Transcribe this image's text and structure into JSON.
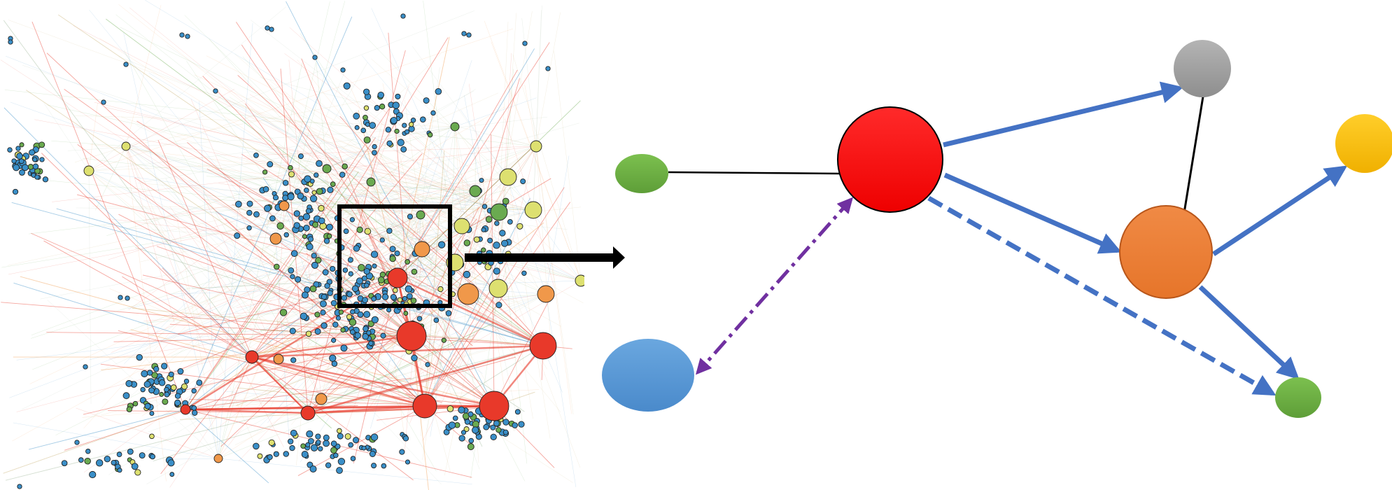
{
  "colors": {
    "hub_red": "#ff0000",
    "orange": "#ed7d31",
    "green": "#70ad47",
    "blue": "#5b9bd5",
    "gray": "#a5a5a5",
    "yellow": "#ffc000",
    "edge_blue": "#4472c4",
    "edge_purple": "#7030a0",
    "edge_black": "#000000",
    "net_blue": "#3a8fc8",
    "net_green": "#6aaa50",
    "net_yellow": "#dde070",
    "net_orange": "#f0984a",
    "net_red": "#e8392a"
  },
  "diagram": {
    "nodes": [
      {
        "id": "red-hub",
        "color": "hub_red"
      },
      {
        "id": "gray",
        "color": "gray"
      },
      {
        "id": "yellow",
        "color": "yellow"
      },
      {
        "id": "orange",
        "color": "orange"
      },
      {
        "id": "green-left",
        "color": "green"
      },
      {
        "id": "blue",
        "color": "blue"
      },
      {
        "id": "green-bottom",
        "color": "green"
      }
    ],
    "edges": [
      {
        "from": "green-left",
        "to": "red-hub",
        "style": "solid-undirected",
        "color": "edge_black"
      },
      {
        "from": "gray",
        "to": "orange",
        "style": "solid-undirected",
        "color": "edge_black"
      },
      {
        "from": "red-hub",
        "to": "gray",
        "style": "solid-arrow",
        "color": "edge_blue"
      },
      {
        "from": "red-hub",
        "to": "orange",
        "style": "solid-arrow",
        "color": "edge_blue"
      },
      {
        "from": "orange",
        "to": "yellow",
        "style": "solid-arrow",
        "color": "edge_blue"
      },
      {
        "from": "orange",
        "to": "green-bottom",
        "style": "solid-arrow",
        "color": "edge_blue"
      },
      {
        "from": "red-hub",
        "to": "green-bottom",
        "style": "dashed-arrow",
        "color": "edge_blue"
      },
      {
        "from": "red-hub",
        "to": "blue",
        "style": "dash-dot-bidirectional",
        "color": "edge_purple"
      }
    ]
  }
}
